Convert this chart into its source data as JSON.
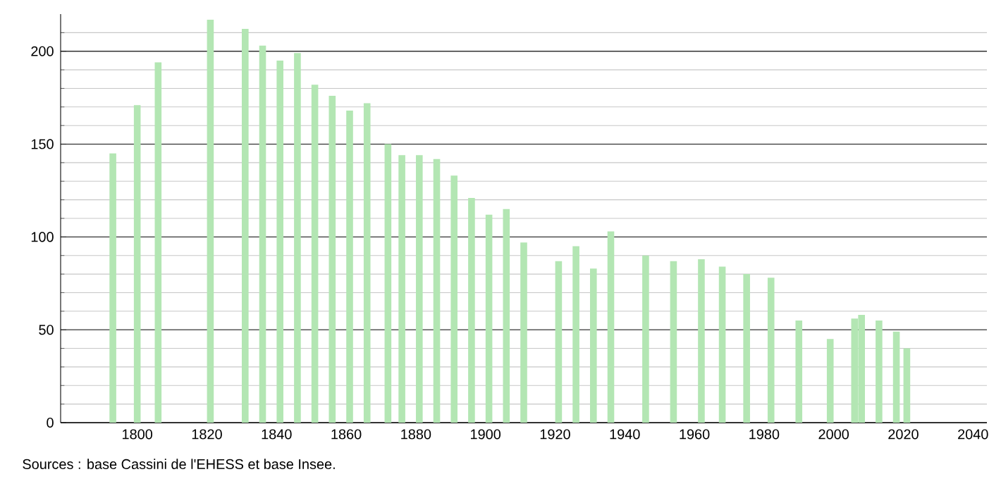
{
  "chart_data": {
    "type": "bar",
    "x": [
      1793,
      1800,
      1806,
      1821,
      1831,
      1836,
      1841,
      1846,
      1851,
      1856,
      1861,
      1866,
      1872,
      1876,
      1881,
      1886,
      1891,
      1896,
      1901,
      1906,
      1911,
      1921,
      1926,
      1931,
      1936,
      1946,
      1954,
      1962,
      1968,
      1975,
      1982,
      1990,
      1999,
      2006,
      2008,
      2013,
      2018,
      2021
    ],
    "values": [
      145,
      171,
      194,
      217,
      212,
      203,
      195,
      199,
      182,
      176,
      168,
      172,
      150,
      144,
      144,
      142,
      133,
      121,
      112,
      115,
      97,
      87,
      95,
      83,
      103,
      90,
      87,
      88,
      84,
      80,
      78,
      55,
      45,
      56,
      58,
      55,
      49,
      40
    ],
    "color": "#b3e6b3",
    "xlim": [
      1778,
      2044
    ],
    "xticks": [
      1800,
      1820,
      1840,
      1860,
      1880,
      1900,
      1920,
      1940,
      1960,
      1980,
      2000,
      2020,
      2040
    ],
    "ylim": [
      0,
      220
    ],
    "yticks": [
      0,
      {
        "value": 10,
        "label": null
      },
      {
        "value": 20,
        "label": null
      },
      {
        "value": 30,
        "label": null
      },
      {
        "value": 40,
        "label": null
      },
      50,
      {
        "value": 60,
        "label": null
      },
      {
        "value": 70,
        "label": null
      },
      {
        "value": 80,
        "label": null
      },
      {
        "value": 90,
        "label": null
      },
      100,
      {
        "value": 110,
        "label": null
      },
      {
        "value": 120,
        "label": null
      },
      {
        "value": 130,
        "label": null
      },
      {
        "value": 140,
        "label": null
      },
      150,
      {
        "value": 160,
        "label": null
      },
      {
        "value": 170,
        "label": null
      },
      {
        "value": 180,
        "label": null
      },
      {
        "value": 190,
        "label": null
      },
      200,
      {
        "value": 210,
        "label": null
      }
    ],
    "grid": "y",
    "annotations": [
      "Sources : base Cassini de l'EHESS et base Insee."
    ]
  }
}
